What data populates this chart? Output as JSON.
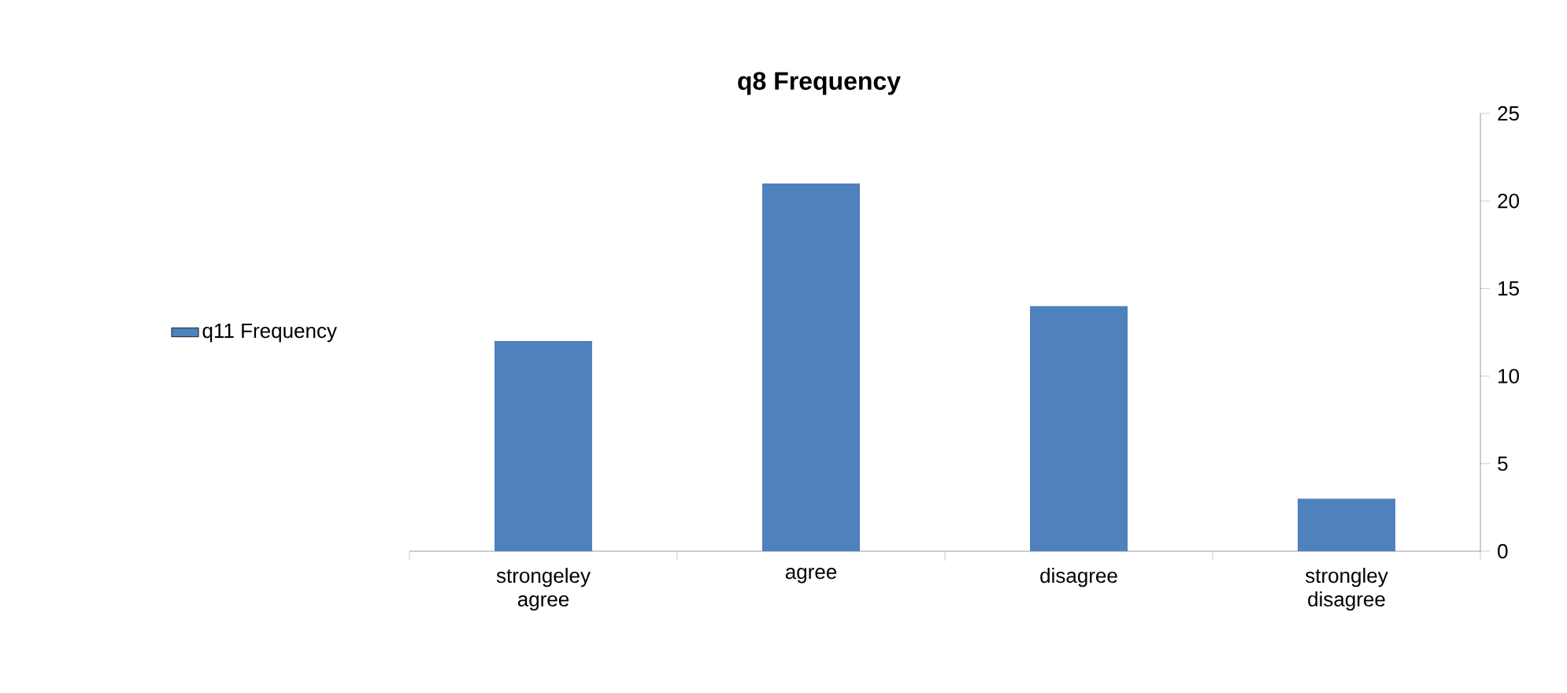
{
  "chart_data": {
    "type": "bar",
    "title": "q8 Frequency",
    "categories": [
      "strongeley agree",
      "agree",
      "disagree",
      "strongley disagree"
    ],
    "series": [
      {
        "name": "q11 Frequency",
        "color": "#4f81bd",
        "values": [
          12,
          21,
          14,
          3
        ]
      }
    ],
    "ylim": [
      0,
      25
    ],
    "yticks": [
      0,
      5,
      10,
      15,
      20,
      25
    ],
    "grid": false,
    "legend": "left"
  }
}
